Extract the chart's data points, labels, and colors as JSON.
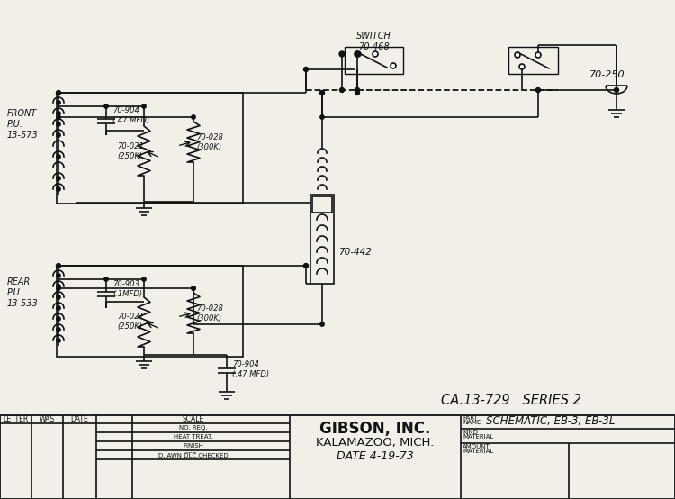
{
  "bg_color": "#f2efe8",
  "line_color": "#111111",
  "title_label": "CA.13-729   SERIES 2",
  "footer_company": "GIBSON, INC.",
  "footer_location": "KALAMAZOO, MICH.",
  "footer_date": "4-19-73",
  "footer_partname": "SCHEMATIC, EB-3, EB-3L",
  "footer_cols": [
    "LETTER",
    "WAS",
    "DATE",
    "SCALE"
  ],
  "footer_rows": [
    "NO. REQ.",
    "HEAT TREAT.",
    "FINISH",
    "D.IAWN D̅L̅C̅.CHECKED"
  ]
}
